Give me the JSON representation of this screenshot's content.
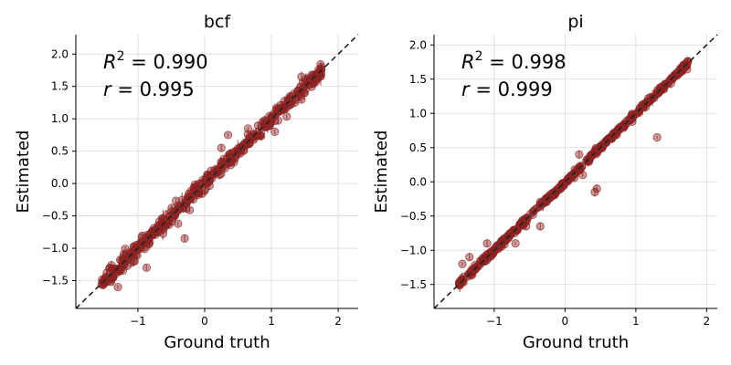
{
  "chart_data": [
    {
      "type": "scatter",
      "title": "bcf",
      "xlabel": "Ground truth",
      "ylabel": "Estimated",
      "xlim": [
        -1.93,
        2.3
      ],
      "ylim": [
        -1.93,
        2.3
      ],
      "xticks": [
        -1,
        0,
        1,
        2
      ],
      "xtick_labels": [
        "−1",
        "0",
        "1",
        "2"
      ],
      "yticks": [
        -1.5,
        -1.0,
        -0.5,
        0.0,
        0.5,
        1.0,
        1.5,
        2.0
      ],
      "ytick_labels": [
        "−1.5",
        "−1.0",
        "−0.5",
        "0.0",
        "0.5",
        "1.0",
        "1.5",
        "2.0"
      ],
      "grid": true,
      "identity_line": true,
      "annotations": [
        {
          "lhs": "R",
          "sup": "2",
          "rest": " = 0.990"
        },
        {
          "lhs": "r",
          "sup": "",
          "rest": " = 0.995"
        }
      ],
      "series": [
        {
          "x_range": [
            -1.55,
            1.75
          ],
          "noise_sd": 0.055,
          "err_sd": 0.04,
          "outliers": [
            [
              -0.3,
              -0.85
            ],
            [
              -1.05,
              -1.2
            ],
            [
              -0.95,
              -0.9
            ],
            [
              -0.4,
              -0.62
            ],
            [
              -0.87,
              -1.3
            ],
            [
              0.25,
              0.55
            ],
            [
              0.35,
              0.75
            ],
            [
              1.45,
              1.65
            ],
            [
              1.05,
              0.8
            ],
            [
              0.65,
              0.85
            ],
            [
              1.35,
              1.25
            ],
            [
              -1.3,
              -1.6
            ]
          ]
        }
      ]
    },
    {
      "type": "scatter",
      "title": "pi",
      "xlabel": "Ground truth",
      "ylabel": "Estimated",
      "xlim": [
        -1.85,
        2.15
      ],
      "ylim": [
        -1.85,
        2.15
      ],
      "xticks": [
        -1,
        0,
        1,
        2
      ],
      "xtick_labels": [
        "−1",
        "0",
        "1",
        "2"
      ],
      "yticks": [
        -1.5,
        -1.0,
        -0.5,
        0.0,
        0.5,
        1.0,
        1.5,
        2.0
      ],
      "ytick_labels": [
        "−1.5",
        "−1.0",
        "−0.5",
        "0.0",
        "0.5",
        "1.0",
        "1.5",
        "2.0"
      ],
      "grid": true,
      "identity_line": true,
      "annotations": [
        {
          "lhs": "R",
          "sup": "2",
          "rest": " = 0.998"
        },
        {
          "lhs": "r",
          "sup": "",
          "rest": " = 0.999"
        }
      ],
      "series": [
        {
          "x_range": [
            -1.5,
            1.75
          ],
          "noise_sd": 0.022,
          "err_sd": 0.03,
          "outliers": [
            [
              1.3,
              0.65
            ],
            [
              0.45,
              -0.1
            ],
            [
              0.42,
              -0.15
            ],
            [
              0.25,
              0.1
            ],
            [
              0.2,
              0.4
            ],
            [
              -1.1,
              -0.9
            ],
            [
              -0.7,
              -0.9
            ],
            [
              -1.35,
              -1.1
            ],
            [
              -0.55,
              -0.65
            ],
            [
              -1.45,
              -1.2
            ],
            [
              0.95,
              0.88
            ],
            [
              -0.35,
              -0.65
            ]
          ]
        }
      ]
    }
  ],
  "style": {
    "point_color": "#8b2323",
    "dash_color": "#222222",
    "grid_color": "#d8d8d8"
  }
}
